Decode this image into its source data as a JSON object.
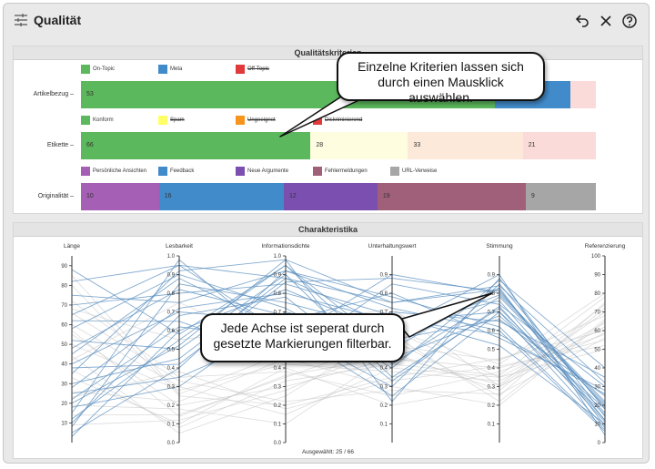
{
  "window": {
    "title": "Qualität",
    "icons": {
      "settings": "tune-sliders-icon",
      "undo": "undo-icon",
      "close": "close-icon",
      "help": "help-icon"
    }
  },
  "quality": {
    "title": "Qualitätskriterien",
    "rows": [
      {
        "label": "Artikelbezug",
        "legend": [
          {
            "name": "On-Topic",
            "color": "#5cb85c",
            "struck": false
          },
          {
            "name": "Meta",
            "color": "#428bca",
            "struck": false
          },
          {
            "name": "Off-Topic",
            "color": "#e03a3a",
            "struck": true
          }
        ],
        "segments": [
          {
            "value": 53,
            "label": "53",
            "color": "#5cb85c"
          },
          {
            "value": 9.7,
            "label": "",
            "color": "#428bca"
          },
          {
            "value": 3.3,
            "label": "",
            "color": "#fbdada"
          }
        ]
      },
      {
        "label": "Etikette",
        "legend": [
          {
            "name": "Konform",
            "color": "#5cb85c",
            "struck": false
          },
          {
            "name": "Spam",
            "color": "#ffff66",
            "struck": true
          },
          {
            "name": "Ungeeignet",
            "color": "#f7941d",
            "struck": true
          },
          {
            "name": "Diskriminierend",
            "color": "#e03a3a",
            "struck": true
          }
        ],
        "segments": [
          {
            "value": 66,
            "label": "66",
            "color": "#5cb85c"
          },
          {
            "value": 28,
            "label": "28",
            "color": "#fffde0"
          },
          {
            "value": 33,
            "label": "33",
            "color": "#fde9d9"
          },
          {
            "value": 21,
            "label": "21",
            "color": "#fbdada"
          }
        ]
      },
      {
        "label": "Originalität",
        "legend": [
          {
            "name": "Persönliche Ansichten",
            "color": "#a55fb5",
            "struck": false
          },
          {
            "name": "Feedback",
            "color": "#428bca",
            "struck": false
          },
          {
            "name": "Neue Argumente",
            "color": "#7b4fb0",
            "struck": false
          },
          {
            "name": "Fehlermeldungen",
            "color": "#a0607a",
            "struck": false
          },
          {
            "name": "URL-Verweise",
            "color": "#a6a6a6",
            "struck": false
          }
        ],
        "segments": [
          {
            "value": 10,
            "label": "10",
            "color": "#a55fb5"
          },
          {
            "value": 16,
            "label": "16",
            "color": "#428bca"
          },
          {
            "value": 12,
            "label": "12",
            "color": "#7b4fb0"
          },
          {
            "value": 19,
            "label": "19",
            "color": "#a0607a"
          },
          {
            "value": 9,
            "label": "9",
            "color": "#a6a6a6"
          }
        ]
      }
    ]
  },
  "charakter": {
    "title": "Charakteristika",
    "selection_text": "Ausgewählt: 25 / 66",
    "axes": [
      {
        "name": "Länge",
        "min": 0,
        "max": 95,
        "ticks": [
          10,
          20,
          30,
          40,
          50,
          60,
          70,
          80,
          90
        ],
        "tick_labels": [
          "10",
          "20",
          "30",
          "40",
          "50",
          "60",
          "70",
          "80",
          "90"
        ]
      },
      {
        "name": "Lesbarkeit",
        "min": 0,
        "max": 1,
        "ticks": [
          0,
          0.1,
          0.2,
          0.3,
          0.4,
          0.5,
          0.6,
          0.7,
          0.8,
          0.9,
          1
        ],
        "tick_labels": [
          "0.0",
          "0.1",
          "0.2",
          "0.3",
          "0.4",
          "0.5",
          "0.6",
          "0.7",
          "0.8",
          "0.9",
          "1.0"
        ]
      },
      {
        "name": "Informationsdichte",
        "min": 0,
        "max": 1,
        "ticks": [
          0,
          0.1,
          0.2,
          0.3,
          0.4,
          0.5,
          0.6,
          0.7,
          0.8,
          0.9,
          1
        ],
        "tick_labels": [
          "0.0",
          "0.1",
          "0.2",
          "0.3",
          "0.4",
          "0.5",
          "0.6",
          "0.7",
          "0.8",
          "0.9",
          "1.0"
        ]
      },
      {
        "name": "Unterhaltungswert",
        "min": 0,
        "max": 1,
        "ticks": [
          0.1,
          0.2,
          0.3,
          0.4,
          0.5,
          0.6,
          0.7,
          0.8,
          0.9
        ],
        "tick_labels": [
          "0.1",
          "0.2",
          "0.3",
          "0.4",
          "0.5",
          "0.6",
          "0.7",
          "0.8",
          "0.9"
        ]
      },
      {
        "name": "Stimmung",
        "min": 0,
        "max": 1,
        "ticks": [
          0.1,
          0.2,
          0.3,
          0.4,
          0.5,
          0.6,
          0.7,
          0.8,
          0.9
        ],
        "tick_labels": [
          "0.1",
          "0.2",
          "0.3",
          "0.4",
          "0.5",
          "0.6",
          "0.7",
          "0.8",
          "0.9"
        ]
      },
      {
        "name": "Referenzierung",
        "min": 0,
        "max": 100,
        "ticks": [
          0,
          10,
          20,
          30,
          40,
          50,
          60,
          70,
          80,
          90,
          100
        ],
        "tick_labels": [
          "0",
          "10",
          "20",
          "30",
          "40",
          "50",
          "60",
          "70",
          "80",
          "90",
          "100"
        ]
      }
    ],
    "selected_lines": [
      [
        82,
        0.95,
        0.88,
        0.75,
        0.82,
        12
      ],
      [
        12,
        0.55,
        0.95,
        0.42,
        0.78,
        20
      ],
      [
        28,
        0.72,
        0.8,
        0.65,
        0.7,
        8
      ],
      [
        45,
        0.88,
        0.6,
        0.3,
        0.85,
        18
      ],
      [
        5,
        0.4,
        0.92,
        0.72,
        0.6,
        6
      ],
      [
        62,
        0.65,
        0.45,
        0.85,
        0.74,
        30
      ],
      [
        35,
        0.92,
        0.98,
        0.22,
        0.88,
        14
      ],
      [
        18,
        0.3,
        0.7,
        0.55,
        0.66,
        25
      ],
      [
        70,
        0.8,
        0.85,
        0.68,
        0.52,
        10
      ],
      [
        22,
        0.62,
        0.55,
        0.9,
        0.8,
        22
      ],
      [
        52,
        0.5,
        0.9,
        0.35,
        0.72,
        16
      ],
      [
        8,
        0.85,
        0.75,
        0.6,
        0.9,
        4
      ],
      [
        40,
        0.7,
        0.65,
        0.8,
        0.56,
        28
      ],
      [
        88,
        0.58,
        0.95,
        0.5,
        0.83,
        9
      ],
      [
        15,
        0.98,
        0.5,
        0.7,
        0.65,
        35
      ],
      [
        30,
        0.45,
        0.88,
        0.62,
        0.76,
        12
      ],
      [
        58,
        0.9,
        0.72,
        0.4,
        0.87,
        40
      ],
      [
        25,
        0.35,
        0.6,
        0.25,
        0.7,
        18
      ],
      [
        75,
        0.75,
        0.92,
        0.78,
        0.62,
        7
      ],
      [
        3,
        0.6,
        0.82,
        0.58,
        0.79,
        21
      ],
      [
        48,
        0.82,
        0.68,
        0.45,
        0.68,
        15
      ],
      [
        20,
        0.52,
        0.98,
        0.75,
        0.84,
        32
      ],
      [
        65,
        0.95,
        0.58,
        0.66,
        0.58,
        26
      ],
      [
        10,
        0.68,
        0.78,
        0.33,
        0.73,
        11
      ],
      [
        38,
        0.42,
        0.86,
        0.88,
        0.81,
        19
      ]
    ],
    "unselected_lines": [
      [
        55,
        0.2,
        0.3,
        0.45,
        0.4,
        55
      ],
      [
        33,
        0.1,
        0.4,
        0.2,
        0.3,
        70
      ],
      [
        80,
        0.25,
        0.2,
        0.35,
        0.45,
        60
      ],
      [
        14,
        0.15,
        0.35,
        0.55,
        0.25,
        75
      ],
      [
        60,
        0.3,
        0.15,
        0.4,
        0.35,
        50
      ],
      [
        26,
        0.22,
        0.45,
        0.3,
        0.2,
        65
      ],
      [
        44,
        0.05,
        0.25,
        0.6,
        0.42,
        80
      ],
      [
        72,
        0.35,
        0.38,
        0.25,
        0.38,
        58
      ],
      [
        19,
        0.18,
        0.1,
        0.48,
        0.28,
        72
      ],
      [
        50,
        0.28,
        0.42,
        0.38,
        0.33,
        62
      ],
      [
        9,
        0.12,
        0.28,
        0.52,
        0.44,
        68
      ],
      [
        66,
        0.33,
        0.22,
        0.28,
        0.26,
        56
      ],
      [
        37,
        0.08,
        0.33,
        0.42,
        0.36,
        78
      ],
      [
        85,
        0.26,
        0.48,
        0.58,
        0.22,
        66
      ],
      [
        23,
        0.38,
        0.18,
        0.33,
        0.41,
        52
      ],
      [
        57,
        0.14,
        0.36,
        0.46,
        0.31,
        74
      ],
      [
        42,
        0.75,
        0.5,
        0.6,
        0.35,
        64
      ],
      [
        68,
        0.55,
        0.62,
        0.72,
        0.3,
        59
      ]
    ]
  },
  "callouts": {
    "top": "Einzelne Kriterien lassen sich durch einen Mausklick auswählen.",
    "bottom": "Jede Achse ist seperat durch gesetzte Markierungen filterbar."
  }
}
